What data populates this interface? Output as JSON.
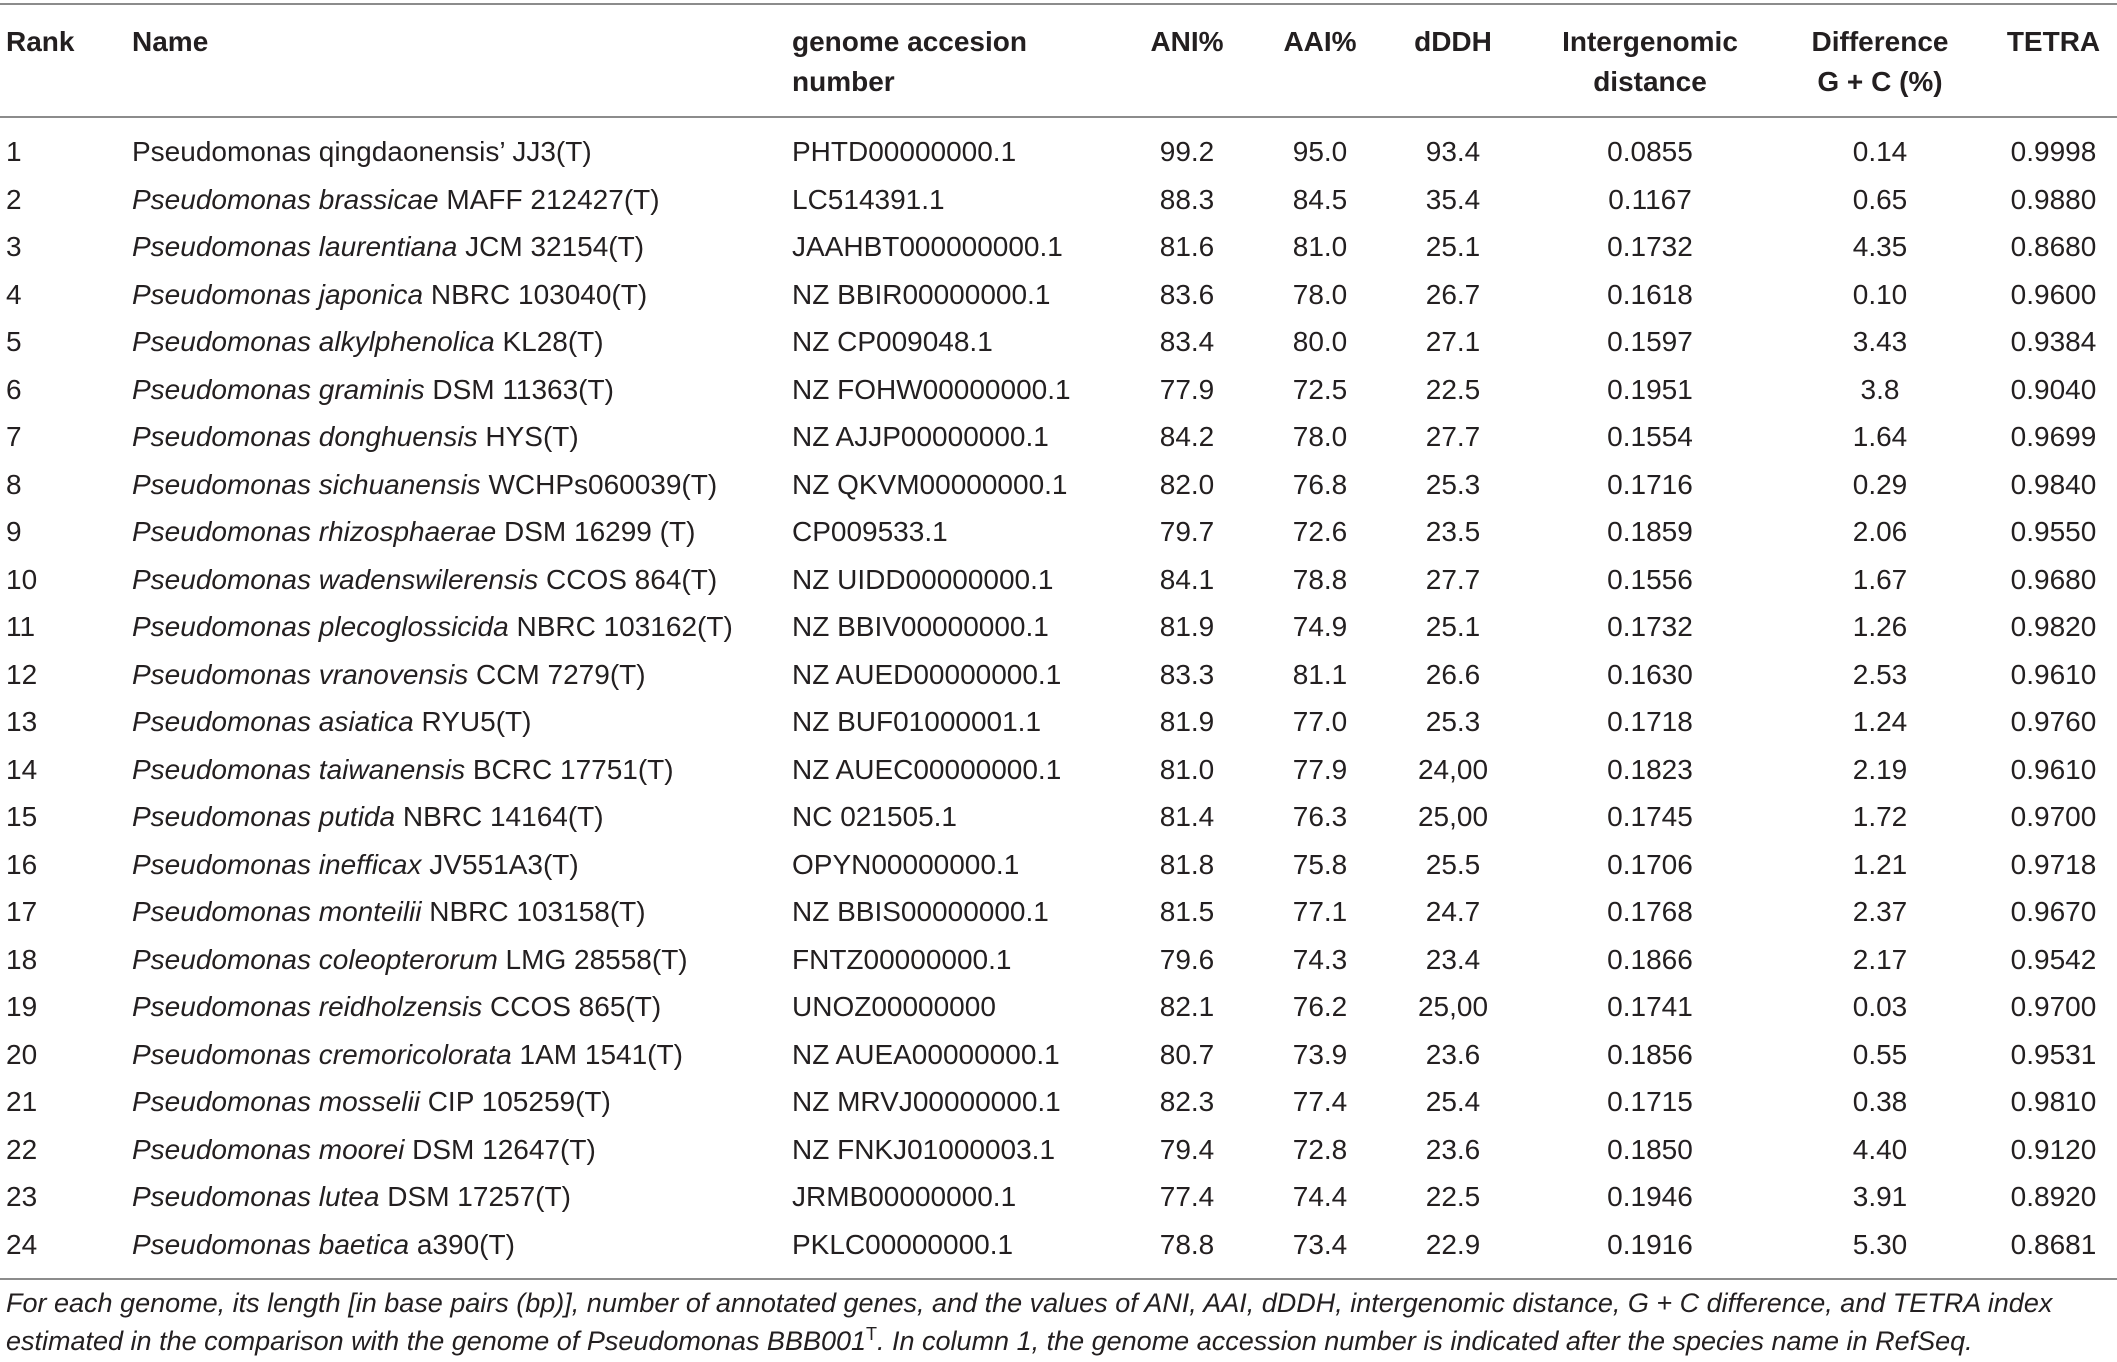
{
  "headers": {
    "rank": "Rank",
    "name": "Name",
    "accession_l1": "genome accesion",
    "accession_l2": "number",
    "ani": "ANI%",
    "aai": "AAI%",
    "dddh": "dDDH",
    "intergenomic_l1": "Intergenomic",
    "intergenomic_l2": "distance",
    "gc_l1": "Difference",
    "gc_l2": "G + C (%)",
    "tetra": "TETRA"
  },
  "rows": [
    {
      "rank": "1",
      "genus": "Pseudomonas qingdaonensis’",
      "species": "",
      "strain": "JJ3(T)",
      "italic_species": false,
      "accession": "PHTD00000000.1",
      "ani": "99.2",
      "aai": "95.0",
      "dddh": "93.4",
      "intergenomic": "0.0855",
      "gc": "0.14",
      "tetra": "0.9998"
    },
    {
      "rank": "2",
      "genus": "Pseudomonas brassicae",
      "species": "",
      "strain": "MAFF 212427(T)",
      "italic_species": true,
      "accession": "LC514391.1",
      "ani": "88.3",
      "aai": "84.5",
      "dddh": "35.4",
      "intergenomic": "0.1167",
      "gc": "0.65",
      "tetra": "0.9880"
    },
    {
      "rank": "3",
      "genus": "Pseudomonas laurentiana",
      "species": "",
      "strain": "JCM 32154(T)",
      "italic_species": true,
      "accession": "JAAHBT000000000.1",
      "ani": "81.6",
      "aai": "81.0",
      "dddh": "25.1",
      "intergenomic": "0.1732",
      "gc": "4.35",
      "tetra": "0.8680"
    },
    {
      "rank": "4",
      "genus": "Pseudomonas japonica",
      "species": "",
      "strain": "NBRC 103040(T)",
      "italic_species": true,
      "accession": "NZ BBIR00000000.1",
      "ani": "83.6",
      "aai": "78.0",
      "dddh": "26.7",
      "intergenomic": "0.1618",
      "gc": "0.10",
      "tetra": "0.9600"
    },
    {
      "rank": "5",
      "genus": "Pseudomonas alkylphenolica",
      "species": "",
      "strain": "KL28(T)",
      "italic_species": true,
      "accession": "NZ CP009048.1",
      "ani": "83.4",
      "aai": "80.0",
      "dddh": "27.1",
      "intergenomic": "0.1597",
      "gc": "3.43",
      "tetra": "0.9384"
    },
    {
      "rank": "6",
      "genus": "Pseudomonas graminis",
      "species": "",
      "strain": "DSM 11363(T)",
      "italic_species": true,
      "accession": "NZ FOHW00000000.1",
      "ani": "77.9",
      "aai": "72.5",
      "dddh": "22.5",
      "intergenomic": "0.1951",
      "gc": "3.8",
      "tetra": "0.9040"
    },
    {
      "rank": "7",
      "genus": "Pseudomonas donghuensis",
      "species": "",
      "strain": "HYS(T)",
      "italic_species": true,
      "accession": "NZ AJJP00000000.1",
      "ani": "84.2",
      "aai": "78.0",
      "dddh": "27.7",
      "intergenomic": "0.1554",
      "gc": "1.64",
      "tetra": "0.9699"
    },
    {
      "rank": "8",
      "genus": "Pseudomonas sichuanensis",
      "species": "",
      "strain": "WCHPs060039(T)",
      "italic_species": true,
      "accession": "NZ QKVM00000000.1",
      "ani": "82.0",
      "aai": "76.8",
      "dddh": "25.3",
      "intergenomic": "0.1716",
      "gc": "0.29",
      "tetra": "0.9840"
    },
    {
      "rank": "9",
      "genus": "Pseudomonas rhizosphaerae",
      "species": "",
      "strain": "DSM 16299 (T)",
      "italic_species": true,
      "accession": "CP009533.1",
      "ani": "79.7",
      "aai": "72.6",
      "dddh": "23.5",
      "intergenomic": "0.1859",
      "gc": "2.06",
      "tetra": "0.9550"
    },
    {
      "rank": "10",
      "genus": "Pseudomonas wadenswilerensis",
      "species": "",
      "strain": "CCOS 864(T)",
      "italic_species": true,
      "accession": "NZ UIDD00000000.1",
      "ani": "84.1",
      "aai": "78.8",
      "dddh": "27.7",
      "intergenomic": "0.1556",
      "gc": "1.67",
      "tetra": "0.9680"
    },
    {
      "rank": "11",
      "genus": "Pseudomonas plecoglossicida",
      "species": "",
      "strain": "NBRC 103162(T)",
      "italic_species": true,
      "accession": "NZ BBIV00000000.1",
      "ani": "81.9",
      "aai": "74.9",
      "dddh": "25.1",
      "intergenomic": "0.1732",
      "gc": "1.26",
      "tetra": "0.9820"
    },
    {
      "rank": "12",
      "genus": "Pseudomonas vranovensis",
      "species": "",
      "strain": "CCM 7279(T)",
      "italic_species": true,
      "accession": "NZ AUED00000000.1",
      "ani": "83.3",
      "aai": "81.1",
      "dddh": "26.6",
      "intergenomic": "0.1630",
      "gc": "2.53",
      "tetra": "0.9610"
    },
    {
      "rank": "13",
      "genus": "Pseudomonas asiatica",
      "species": "",
      "strain": "RYU5(T)",
      "italic_species": true,
      "accession": "NZ BUF01000001.1",
      "ani": "81.9",
      "aai": "77.0",
      "dddh": "25.3",
      "intergenomic": "0.1718",
      "gc": "1.24",
      "tetra": "0.9760"
    },
    {
      "rank": "14",
      "genus": "Pseudomonas taiwanensis",
      "species": "",
      "strain": "BCRC 17751(T)",
      "italic_species": true,
      "accession": "NZ AUEC00000000.1",
      "ani": "81.0",
      "aai": "77.9",
      "dddh": "24,00",
      "intergenomic": "0.1823",
      "gc": "2.19",
      "tetra": "0.9610"
    },
    {
      "rank": "15",
      "genus": "Pseudomonas putida",
      "species": "",
      "strain": "NBRC 14164(T)",
      "italic_species": true,
      "accession": "NC 021505.1",
      "ani": "81.4",
      "aai": "76.3",
      "dddh": "25,00",
      "intergenomic": "0.1745",
      "gc": "1.72",
      "tetra": "0.9700"
    },
    {
      "rank": "16",
      "genus": "Pseudomonas inefficax",
      "species": "",
      "strain": "JV551A3(T)",
      "italic_species": true,
      "accession": "OPYN00000000.1",
      "ani": "81.8",
      "aai": "75.8",
      "dddh": "25.5",
      "intergenomic": "0.1706",
      "gc": "1.21",
      "tetra": "0.9718"
    },
    {
      "rank": "17",
      "genus": "Pseudomonas monteilii",
      "species": "",
      "strain": "NBRC 103158(T)",
      "italic_species": true,
      "accession": "NZ BBIS00000000.1",
      "ani": "81.5",
      "aai": "77.1",
      "dddh": "24.7",
      "intergenomic": "0.1768",
      "gc": "2.37",
      "tetra": "0.9670"
    },
    {
      "rank": "18",
      "genus": "Pseudomonas coleopterorum",
      "species": "",
      "strain": "LMG 28558(T)",
      "italic_species": true,
      "accession": "FNTZ00000000.1",
      "ani": "79.6",
      "aai": "74.3",
      "dddh": "23.4",
      "intergenomic": "0.1866",
      "gc": "2.17",
      "tetra": "0.9542"
    },
    {
      "rank": "19",
      "genus": "Pseudomonas reidholzensis",
      "species": "",
      "strain": "CCOS 865(T)",
      "italic_species": true,
      "accession": "UNOZ00000000",
      "ani": "82.1",
      "aai": "76.2",
      "dddh": "25,00",
      "intergenomic": "0.1741",
      "gc": "0.03",
      "tetra": "0.9700"
    },
    {
      "rank": "20",
      "genus": "Pseudomonas cremoricolorata",
      "species": "",
      "strain": "1AM 1541(T)",
      "italic_species": true,
      "accession": "NZ AUEA00000000.1",
      "ani": "80.7",
      "aai": "73.9",
      "dddh": "23.6",
      "intergenomic": "0.1856",
      "gc": "0.55",
      "tetra": "0.9531"
    },
    {
      "rank": "21",
      "genus": "Pseudomonas mosselii",
      "species": "",
      "strain": "CIP 105259(T)",
      "italic_species": true,
      "accession": "NZ MRVJ00000000.1",
      "ani": "82.3",
      "aai": "77.4",
      "dddh": "25.4",
      "intergenomic": "0.1715",
      "gc": "0.38",
      "tetra": "0.9810"
    },
    {
      "rank": "22",
      "genus": "Pseudomonas moorei",
      "species": "",
      "strain": "DSM 12647(T)",
      "italic_species": true,
      "accession": "NZ FNKJ01000003.1",
      "ani": "79.4",
      "aai": "72.8",
      "dddh": "23.6",
      "intergenomic": "0.1850",
      "gc": "4.40",
      "tetra": "0.9120"
    },
    {
      "rank": "23",
      "genus": "Pseudomonas lutea",
      "species": "",
      "strain": "DSM 17257(T)",
      "italic_species": true,
      "accession": "JRMB00000000.1",
      "ani": "77.4",
      "aai": "74.4",
      "dddh": "22.5",
      "intergenomic": "0.1946",
      "gc": "3.91",
      "tetra": "0.8920"
    },
    {
      "rank": "24",
      "genus": "Pseudomonas baetica",
      "species": "",
      "strain": "a390(T)",
      "italic_species": true,
      "accession": "PKLC00000000.1",
      "ani": "78.8",
      "aai": "73.4",
      "dddh": "22.9",
      "intergenomic": "0.1916",
      "gc": "5.30",
      "tetra": "0.8681"
    }
  ],
  "footnote": {
    "text_before": "For each genome, its length [in base pairs (bp)], number of annotated genes, and the values of ANI, AAI, dDDH, intergenomic distance, G + C difference, and TETRA index estimated in the comparison with the genome of Pseudomonas BBB001",
    "superscript": "T",
    "text_after": ". In column 1, the genome accession number is indicated after the species name in RefSeq."
  }
}
